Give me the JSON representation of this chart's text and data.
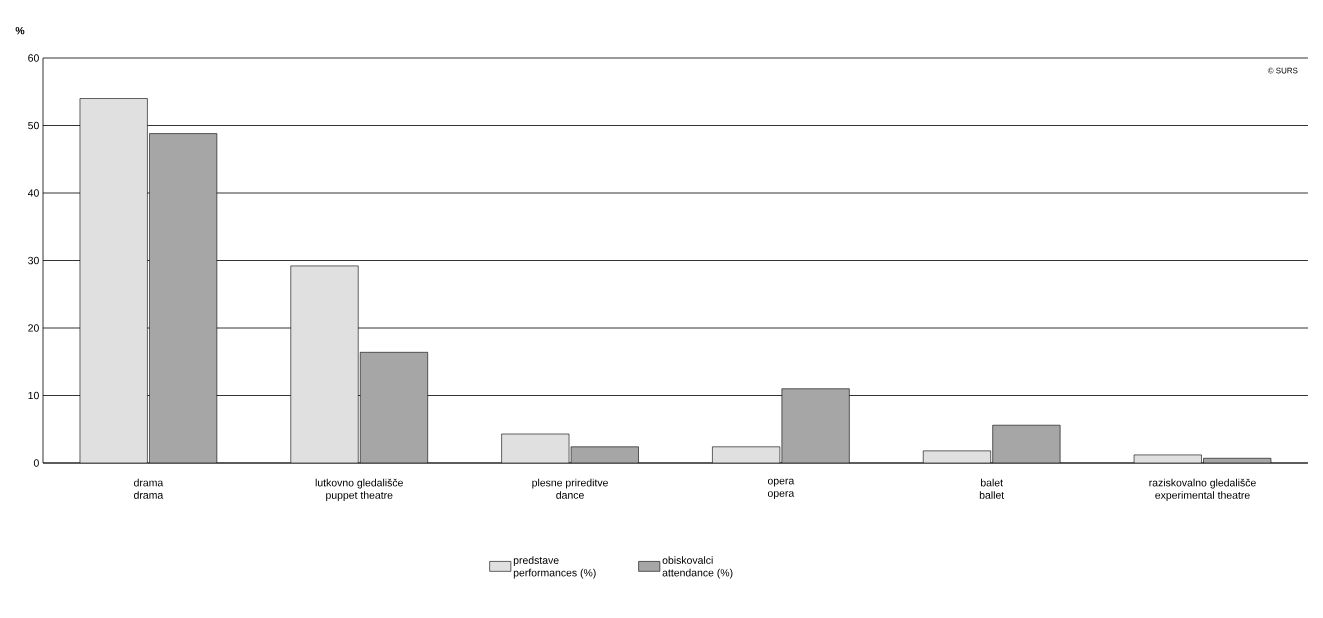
{
  "chart_data": {
    "type": "bar",
    "ylabel": "%",
    "categories": [
      "drama\ndrama",
      "lutkovno gledališče\npuppet theatre",
      "plesne prireditve\ndance",
      "opera\nopera",
      "balet\nballet",
      "raziskovalno gledališče\nexperimental theatre"
    ],
    "series": [
      {
        "name": "predstave\nperformances (%)",
        "color": "#e0e0e0",
        "values": [
          54.0,
          29.2,
          4.3,
          2.4,
          1.8,
          1.2
        ]
      },
      {
        "name": "obiskovalci\nattendance (%)",
        "color": "#a6a6a6",
        "values": [
          48.8,
          16.4,
          2.4,
          11.0,
          5.6,
          0.7
        ]
      }
    ],
    "ylim": [
      0,
      60
    ],
    "yticks": [
      0,
      10,
      20,
      30,
      40,
      50,
      60
    ],
    "grid": "y",
    "legend": "bottom",
    "annotations": [
      "© SURS"
    ]
  }
}
